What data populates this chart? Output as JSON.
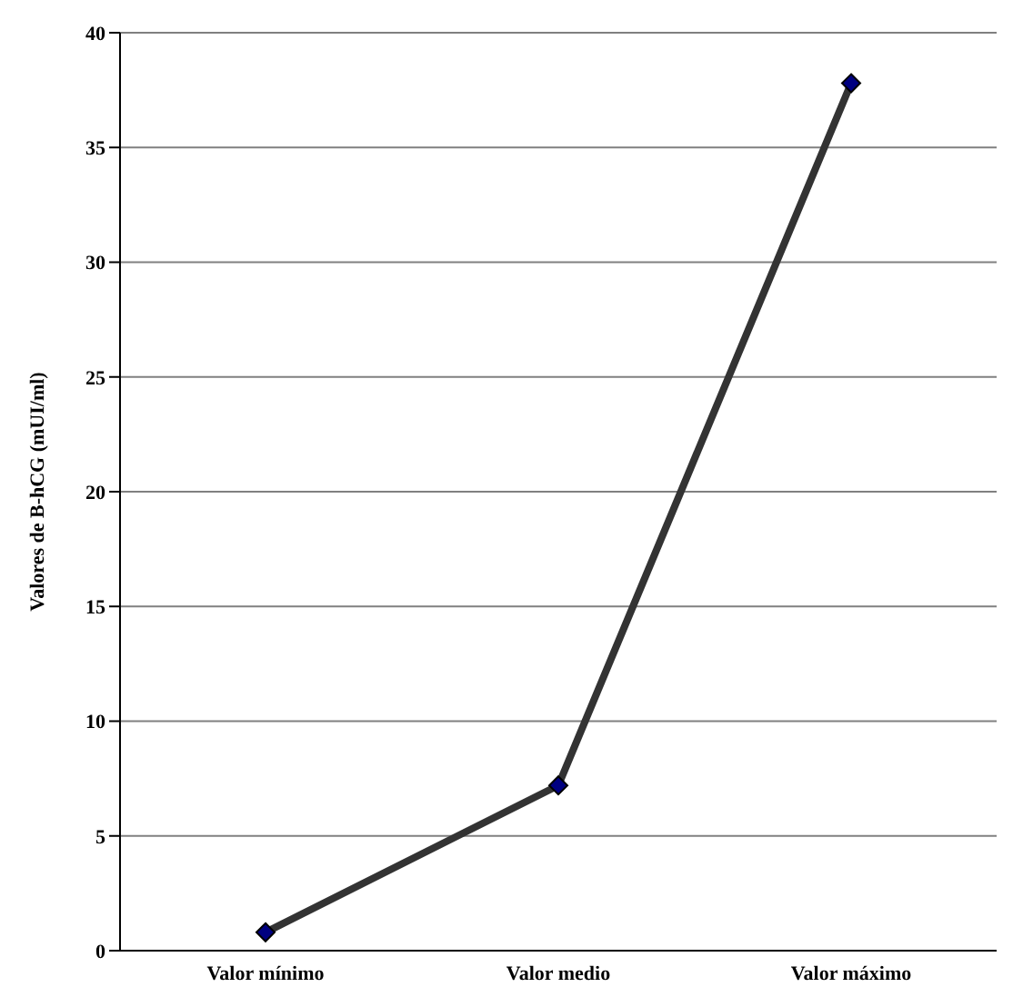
{
  "chart_data": {
    "type": "line",
    "ylabel": "Valores de B-hCG (mUI/ml)",
    "categories": [
      "Valor mínimo",
      "Valor medio",
      "Valor máximo"
    ],
    "series": [
      {
        "color": "#333333",
        "values": [
          0.8,
          7.2,
          37.8
        ]
      }
    ],
    "ylim": [
      0,
      40
    ],
    "yticks": [
      0,
      5,
      10,
      15,
      20,
      25,
      30,
      35,
      40
    ],
    "grid": "y",
    "marker": "diamond",
    "line_style": "solid",
    "legend": false
  }
}
